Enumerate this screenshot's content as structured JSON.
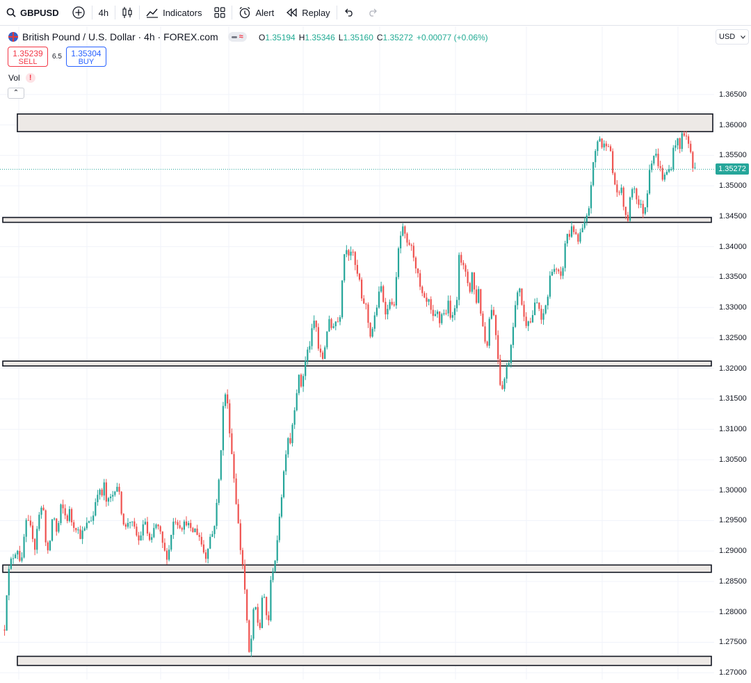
{
  "toolbar": {
    "symbol": "GBPUSD",
    "interval": "4h",
    "indicators_label": "Indicators",
    "alert_label": "Alert",
    "replay_label": "Replay"
  },
  "legend": {
    "title": "British Pound / U.S. Dollar · 4h · FOREX.com",
    "o_label": "O",
    "o": "1.35194",
    "h_label": "H",
    "h": "1.35346",
    "l_label": "L",
    "l": "1.35160",
    "c_label": "C",
    "c": "1.35272",
    "change": "+0.00077 (+0.06%)"
  },
  "trade": {
    "sell_price": "1.35239",
    "sell_label": "SELL",
    "spread": "6.5",
    "buy_price": "1.35304",
    "buy_label": "BUY"
  },
  "volume_label": "Vol",
  "currency": "USD",
  "colors": {
    "up": "#26a69a",
    "down": "#ef5350",
    "zone_fill": "#ede9e6",
    "zone_border": "#131722",
    "last_price": "#26a69a"
  },
  "chart_data": {
    "type": "candlestick",
    "last_price": 1.35272,
    "ylim": [
      1.2698,
      1.3683
    ],
    "yticks": [
      "1.36500",
      "1.36000",
      "1.35500",
      "1.35000",
      "1.34500",
      "1.34000",
      "1.33500",
      "1.33000",
      "1.32500",
      "1.32000",
      "1.31500",
      "1.31000",
      "1.30500",
      "1.30000",
      "1.29500",
      "1.29000",
      "1.28500",
      "1.28000",
      "1.27500",
      "1.27000"
    ],
    "zones": [
      {
        "low": 1.3589,
        "high": 1.3618,
        "start_fraction": 0.012
      },
      {
        "low": 1.344,
        "high": 1.3448,
        "start_fraction": 0.0
      },
      {
        "low": 1.3204,
        "high": 1.3212,
        "start_fraction": 0.0
      },
      {
        "low": 1.2865,
        "high": 1.2877,
        "start_fraction": 0.0
      },
      {
        "low": 1.2712,
        "high": 1.2727,
        "start_fraction": 0.012
      }
    ],
    "close_path": [
      [
        0,
        1.2775
      ],
      [
        4,
        1.285
      ],
      [
        8,
        1.288
      ],
      [
        12,
        1.289
      ],
      [
        16,
        1.29
      ],
      [
        20,
        1.2905
      ],
      [
        24,
        1.287
      ],
      [
        28,
        1.292
      ],
      [
        32,
        1.295
      ],
      [
        36,
        1.294
      ],
      [
        40,
        1.293
      ],
      [
        44,
        1.2905
      ],
      [
        48,
        1.295
      ],
      [
        52,
        1.2965
      ],
      [
        56,
        1.298
      ],
      [
        60,
        1.2905
      ],
      [
        64,
        1.289
      ],
      [
        68,
        1.295
      ],
      [
        72,
        1.2955
      ],
      [
        76,
        1.2925
      ],
      [
        82,
        1.2975
      ],
      [
        86,
        1.2965
      ],
      [
        90,
        1.295
      ],
      [
        94,
        1.2965
      ],
      [
        98,
        1.2945
      ],
      [
        104,
        1.294
      ],
      [
        110,
        1.2925
      ],
      [
        116,
        1.2935
      ],
      [
        122,
        1.295
      ],
      [
        128,
        1.2955
      ],
      [
        132,
        1.2985
      ],
      [
        136,
        1.3005
      ],
      [
        140,
        1.2985
      ],
      [
        144,
        1.301
      ],
      [
        148,
        1.2975
      ],
      [
        152,
        1.2985
      ],
      [
        156,
        1.299
      ],
      [
        160,
        1.3005
      ],
      [
        164,
        1.301
      ],
      [
        168,
        1.2975
      ],
      [
        172,
        1.295
      ],
      [
        176,
        1.2935
      ],
      [
        180,
        1.2955
      ],
      [
        186,
        1.294
      ],
      [
        190,
        1.293
      ],
      [
        194,
        1.2915
      ],
      [
        198,
        1.293
      ],
      [
        204,
        1.295
      ],
      [
        208,
        1.292
      ],
      [
        212,
        1.291
      ],
      [
        218,
        1.2945
      ],
      [
        224,
        1.2935
      ],
      [
        230,
        1.2905
      ],
      [
        234,
        1.289
      ],
      [
        238,
        1.29
      ],
      [
        242,
        1.2935
      ],
      [
        246,
        1.2955
      ],
      [
        252,
        1.2945
      ],
      [
        258,
        1.294
      ],
      [
        264,
        1.295
      ],
      [
        270,
        1.293
      ],
      [
        276,
        1.2935
      ],
      [
        282,
        1.2925
      ],
      [
        288,
        1.29
      ],
      [
        292,
        1.289
      ],
      [
        296,
        1.292
      ],
      [
        302,
        1.293
      ],
      [
        306,
        1.296
      ],
      [
        310,
        1.301
      ],
      [
        314,
        1.308
      ],
      [
        318,
        1.3165
      ],
      [
        322,
        1.315
      ],
      [
        326,
        1.31
      ],
      [
        330,
        1.305
      ],
      [
        334,
        1.3
      ],
      [
        338,
        1.295
      ],
      [
        342,
        1.29
      ],
      [
        346,
        1.287
      ],
      [
        350,
        1.28
      ],
      [
        354,
        1.273
      ],
      [
        358,
        1.276
      ],
      [
        362,
        1.282
      ],
      [
        366,
        1.2785
      ],
      [
        370,
        1.2775
      ],
      [
        374,
        1.284
      ],
      [
        378,
        1.28
      ],
      [
        382,
        1.278
      ],
      [
        386,
        1.2855
      ],
      [
        390,
        1.288
      ],
      [
        394,
        1.2895
      ],
      [
        398,
        1.296
      ],
      [
        402,
        1.3
      ],
      [
        406,
        1.305
      ],
      [
        410,
        1.309
      ],
      [
        414,
        1.308
      ],
      [
        418,
        1.312
      ],
      [
        422,
        1.3155
      ],
      [
        426,
        1.3185
      ],
      [
        430,
        1.317
      ],
      [
        434,
        1.32
      ],
      [
        438,
        1.3225
      ],
      [
        442,
        1.324
      ],
      [
        446,
        1.3265
      ],
      [
        450,
        1.3285
      ],
      [
        454,
        1.3235
      ],
      [
        458,
        1.322
      ],
      [
        462,
        1.3215
      ],
      [
        466,
        1.326
      ],
      [
        470,
        1.3275
      ],
      [
        474,
        1.3265
      ],
      [
        478,
        1.328
      ],
      [
        482,
        1.3275
      ],
      [
        486,
        1.329
      ],
      [
        490,
        1.337
      ],
      [
        494,
        1.3405
      ],
      [
        498,
        1.339
      ],
      [
        502,
        1.3395
      ],
      [
        506,
        1.338
      ],
      [
        510,
        1.3355
      ],
      [
        514,
        1.3345
      ],
      [
        518,
        1.33
      ],
      [
        522,
        1.3315
      ],
      [
        526,
        1.328
      ],
      [
        530,
        1.3255
      ],
      [
        534,
        1.327
      ],
      [
        538,
        1.3295
      ],
      [
        542,
        1.332
      ],
      [
        546,
        1.3335
      ],
      [
        550,
        1.33
      ],
      [
        554,
        1.329
      ],
      [
        558,
        1.3315
      ],
      [
        562,
        1.3295
      ],
      [
        566,
        1.332
      ],
      [
        570,
        1.339
      ],
      [
        574,
        1.342
      ],
      [
        578,
        1.343
      ],
      [
        582,
        1.34
      ],
      [
        586,
        1.3405
      ],
      [
        590,
        1.3395
      ],
      [
        594,
        1.338
      ],
      [
        598,
        1.3355
      ],
      [
        602,
        1.333
      ],
      [
        606,
        1.3315
      ],
      [
        610,
        1.3305
      ],
      [
        614,
        1.331
      ],
      [
        618,
        1.329
      ],
      [
        622,
        1.3275
      ],
      [
        626,
        1.3295
      ],
      [
        630,
        1.3275
      ],
      [
        634,
        1.3295
      ],
      [
        638,
        1.3285
      ],
      [
        642,
        1.331
      ],
      [
        646,
        1.328
      ],
      [
        650,
        1.33
      ],
      [
        654,
        1.3285
      ],
      [
        658,
        1.3395
      ],
      [
        662,
        1.3375
      ],
      [
        666,
        1.336
      ],
      [
        670,
        1.3345
      ],
      [
        674,
        1.333
      ],
      [
        678,
        1.3365
      ],
      [
        682,
        1.33
      ],
      [
        686,
        1.3335
      ],
      [
        690,
        1.329
      ],
      [
        694,
        1.326
      ],
      [
        698,
        1.323
      ],
      [
        702,
        1.328
      ],
      [
        706,
        1.3305
      ],
      [
        710,
        1.3275
      ],
      [
        714,
        1.323
      ],
      [
        718,
        1.3175
      ],
      [
        722,
        1.317
      ],
      [
        726,
        1.3195
      ],
      [
        730,
        1.321
      ],
      [
        734,
        1.3245
      ],
      [
        738,
        1.329
      ],
      [
        742,
        1.3315
      ],
      [
        746,
        1.3335
      ],
      [
        750,
        1.33
      ],
      [
        754,
        1.327
      ],
      [
        758,
        1.3285
      ],
      [
        762,
        1.3275
      ],
      [
        766,
        1.3295
      ],
      [
        770,
        1.331
      ],
      [
        774,
        1.33
      ],
      [
        778,
        1.327
      ],
      [
        782,
        1.33
      ],
      [
        786,
        1.331
      ],
      [
        790,
        1.335
      ],
      [
        794,
        1.337
      ],
      [
        798,
        1.336
      ],
      [
        802,
        1.3355
      ],
      [
        806,
        1.3345
      ],
      [
        810,
        1.338
      ],
      [
        814,
        1.3425
      ],
      [
        818,
        1.3415
      ],
      [
        822,
        1.344
      ],
      [
        826,
        1.342
      ],
      [
        830,
        1.3405
      ],
      [
        834,
        1.342
      ],
      [
        838,
        1.343
      ],
      [
        842,
        1.344
      ],
      [
        846,
        1.346
      ],
      [
        850,
        1.351
      ],
      [
        854,
        1.3545
      ],
      [
        858,
        1.357
      ],
      [
        862,
        1.358
      ],
      [
        866,
        1.356
      ],
      [
        870,
        1.357
      ],
      [
        874,
        1.3575
      ],
      [
        878,
        1.355
      ],
      [
        882,
        1.351
      ],
      [
        886,
        1.3495
      ],
      [
        890,
        1.348
      ],
      [
        894,
        1.35
      ],
      [
        898,
        1.345
      ],
      [
        902,
        1.344
      ],
      [
        906,
        1.3475
      ],
      [
        910,
        1.3505
      ],
      [
        914,
        1.349
      ],
      [
        918,
        1.347
      ],
      [
        922,
        1.3465
      ],
      [
        926,
        1.3455
      ],
      [
        930,
        1.348
      ],
      [
        934,
        1.353
      ],
      [
        938,
        1.3545
      ],
      [
        942,
        1.3555
      ],
      [
        946,
        1.354
      ],
      [
        950,
        1.3525
      ],
      [
        954,
        1.351
      ],
      [
        958,
        1.352
      ],
      [
        962,
        1.3525
      ],
      [
        966,
        1.3535
      ],
      [
        970,
        1.357
      ],
      [
        974,
        1.3575
      ],
      [
        978,
        1.356
      ],
      [
        982,
        1.359
      ],
      [
        986,
        1.3585
      ],
      [
        990,
        1.357
      ],
      [
        994,
        1.3555
      ],
      [
        998,
        1.352
      ],
      [
        1000,
        1.3527
      ]
    ]
  }
}
